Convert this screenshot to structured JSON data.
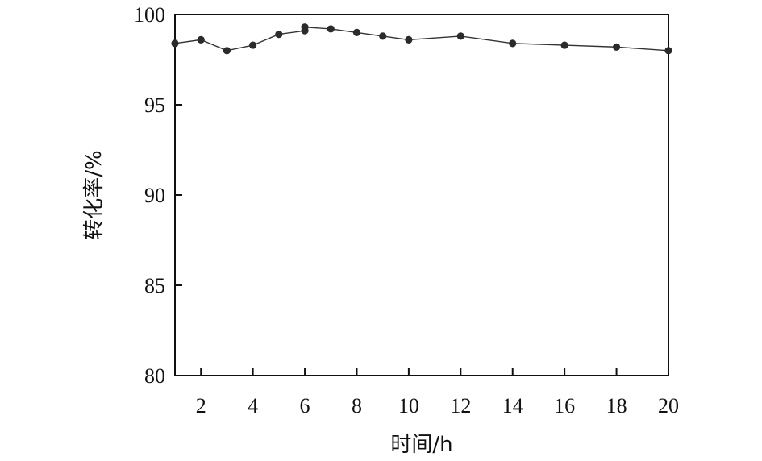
{
  "chart_data": {
    "type": "line",
    "xlabel": "时间/h",
    "ylabel": "转化率/%",
    "xlim": [
      1,
      20
    ],
    "ylim": [
      80,
      100
    ],
    "xticks": [
      2,
      4,
      6,
      8,
      10,
      12,
      14,
      16,
      18,
      20
    ],
    "yticks": [
      80,
      85,
      90,
      95,
      100
    ],
    "grid": false,
    "series": [
      {
        "color": "#333333",
        "points": [
          [
            1,
            98.4
          ],
          [
            2,
            98.6
          ],
          [
            3,
            98.0
          ],
          [
            4,
            98.3
          ],
          [
            5,
            98.9
          ],
          [
            6,
            99.1
          ],
          [
            6,
            99.3
          ],
          [
            7,
            99.2
          ],
          [
            8,
            99.0
          ],
          [
            9,
            98.8
          ],
          [
            10,
            98.6
          ],
          [
            12,
            98.8
          ],
          [
            14,
            98.4
          ],
          [
            16,
            98.3
          ],
          [
            18,
            98.2
          ],
          [
            20,
            98.0
          ]
        ]
      }
    ]
  }
}
